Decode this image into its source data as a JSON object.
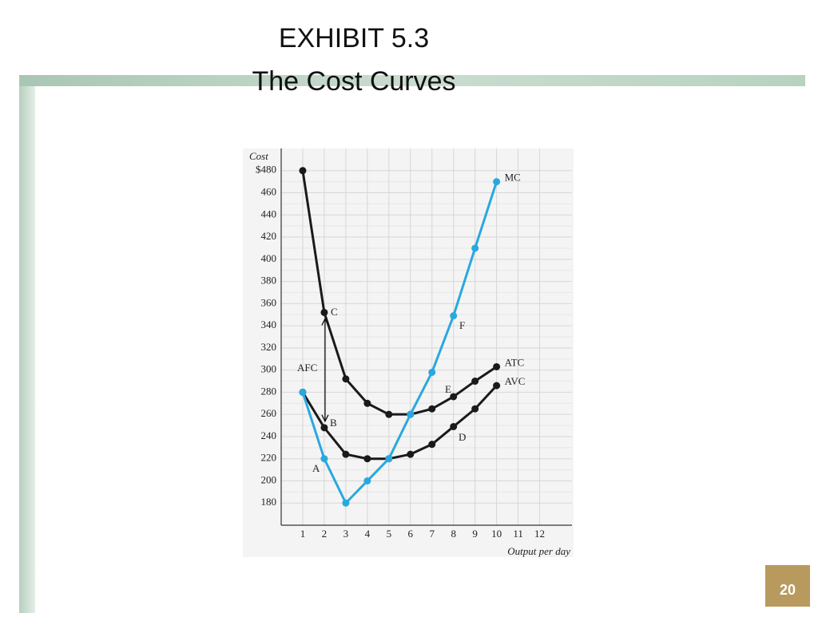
{
  "chart_data": {
    "type": "line",
    "title": "EXHIBIT 5.3",
    "subtitle": "The Cost Curves",
    "y_label": "Cost",
    "x_label": "Output per day",
    "x": [
      1,
      2,
      3,
      4,
      5,
      6,
      7,
      8,
      9,
      10
    ],
    "series": [
      {
        "name": "ATC",
        "color": "#1a1a1a",
        "values": [
          480,
          352,
          292,
          270,
          260,
          260,
          265,
          276,
          290,
          303
        ]
      },
      {
        "name": "AVC",
        "color": "#1a1a1a",
        "values": [
          280,
          248,
          224,
          220,
          220,
          224,
          233,
          249,
          265,
          286
        ]
      },
      {
        "name": "MC",
        "color": "#29a8e0",
        "values": [
          280,
          220,
          180,
          200,
          220,
          260,
          298,
          349,
          410,
          470
        ]
      }
    ],
    "annotations": [
      "AFC",
      "A",
      "B",
      "C",
      "D",
      "E",
      "F"
    ],
    "xlim": [
      0,
      13.5
    ],
    "ylim": [
      160,
      500
    ],
    "xticks": [
      1,
      2,
      3,
      4,
      5,
      6,
      7,
      8,
      9,
      10,
      11,
      12
    ],
    "yticks": [
      180,
      200,
      220,
      240,
      260,
      280,
      300,
      320,
      340,
      360,
      380,
      400,
      420,
      440,
      460,
      {
        "value": 480,
        "label": "$480"
      }
    ],
    "grid": true,
    "page_number": "20"
  }
}
